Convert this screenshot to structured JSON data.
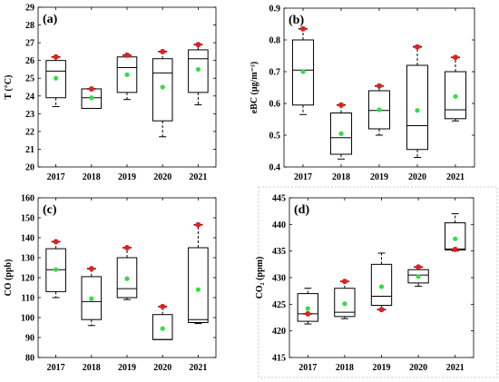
{
  "colors": {
    "mean_marker": "#33dd44",
    "extreme_marker": "#dd2222",
    "extreme_bar": "#8b0000",
    "box_stroke": "#000000"
  },
  "chart_data": [
    {
      "type": "box",
      "panel_label": "(a)",
      "ylabel": "T (°C)",
      "ylim": [
        20,
        29
      ],
      "yticks": [
        20,
        21,
        22,
        23,
        24,
        25,
        26,
        27,
        28,
        29
      ],
      "categories": [
        "2017",
        "2018",
        "2019",
        "2020",
        "2021"
      ],
      "boxes": [
        {
          "min": 23.4,
          "q1": 23.9,
          "median": 25.4,
          "q3": 26.0,
          "max": 26.2,
          "mean": 25.0,
          "extreme": 26.2
        },
        {
          "min": 23.3,
          "q1": 23.3,
          "median": 23.9,
          "q3": 24.4,
          "max": 24.4,
          "mean": 23.9,
          "extreme": 24.4
        },
        {
          "min": 23.8,
          "q1": 24.2,
          "median": 25.6,
          "q3": 26.2,
          "max": 26.3,
          "mean": 25.2,
          "extreme": 26.3
        },
        {
          "min": 21.7,
          "q1": 22.6,
          "median": 25.3,
          "q3": 26.1,
          "max": 26.5,
          "mean": 24.5,
          "extreme": 26.5
        },
        {
          "min": 23.5,
          "q1": 24.2,
          "median": 26.1,
          "q3": 26.6,
          "max": 26.9,
          "mean": 25.5,
          "extreme": 26.9
        }
      ]
    },
    {
      "type": "box",
      "panel_label": "(b)",
      "ylabel": "eBC (μg/m⁻³)",
      "ylim": [
        0.4,
        0.9
      ],
      "yticks": [
        0.4,
        0.5,
        0.6,
        0.7,
        0.8,
        0.9
      ],
      "categories": [
        "2017",
        "2018",
        "2019",
        "2020",
        "2021"
      ],
      "boxes": [
        {
          "min": 0.565,
          "q1": 0.595,
          "median": 0.705,
          "q3": 0.8,
          "max": 0.835,
          "mean": 0.7,
          "extreme": 0.835
        },
        {
          "min": 0.425,
          "q1": 0.44,
          "median": 0.492,
          "q3": 0.57,
          "max": 0.595,
          "mean": 0.505,
          "extreme": 0.595
        },
        {
          "min": 0.5,
          "q1": 0.52,
          "median": 0.578,
          "q3": 0.64,
          "max": 0.655,
          "mean": 0.58,
          "extreme": 0.655
        },
        {
          "min": 0.43,
          "q1": 0.455,
          "median": 0.53,
          "q3": 0.72,
          "max": 0.78,
          "mean": 0.578,
          "extreme": 0.778
        },
        {
          "min": 0.545,
          "q1": 0.552,
          "median": 0.58,
          "q3": 0.7,
          "max": 0.745,
          "mean": 0.622,
          "extreme": 0.745
        }
      ]
    },
    {
      "type": "box",
      "panel_label": "(c)",
      "ylabel": "CO (ppb)",
      "ylim": [
        80,
        160
      ],
      "yticks": [
        80,
        90,
        100,
        110,
        120,
        130,
        140,
        150,
        160
      ],
      "categories": [
        "2017",
        "2018",
        "2019",
        "2020",
        "2021"
      ],
      "boxes": [
        {
          "min": 110,
          "q1": 113,
          "median": 124,
          "q3": 134.5,
          "max": 138,
          "mean": 124,
          "extreme": 138
        },
        {
          "min": 96,
          "q1": 99,
          "median": 108,
          "q3": 120.5,
          "max": 124.5,
          "mean": 109.5,
          "extreme": 124.5
        },
        {
          "min": 109,
          "q1": 110,
          "median": 114.5,
          "q3": 130,
          "max": 135,
          "mean": 119.5,
          "extreme": 135
        },
        {
          "min": 89,
          "q1": 89,
          "median": 89,
          "q3": 101.5,
          "max": 105.5,
          "mean": 94.5,
          "extreme": 105.5
        },
        {
          "min": 97,
          "q1": 97.5,
          "median": 99,
          "q3": 135,
          "max": 146.5,
          "mean": 114,
          "extreme": 146.5
        }
      ]
    },
    {
      "type": "box",
      "panel_label": "(d)",
      "ylabel": "CO₂ (ppm)",
      "ylim": [
        415,
        445
      ],
      "yticks": [
        415,
        420,
        425,
        430,
        435,
        440,
        445
      ],
      "categories": [
        "2017",
        "2018",
        "2019",
        "2020",
        "2021"
      ],
      "boxes": [
        {
          "min": 421.3,
          "q1": 421.8,
          "median": 423.2,
          "q3": 427,
          "max": 428,
          "mean": 424.2,
          "extreme": 423.2
        },
        {
          "min": 422.3,
          "q1": 422.7,
          "median": 423.5,
          "q3": 428,
          "max": 429.3,
          "mean": 425.1,
          "extreme": 429.3
        },
        {
          "min": 424,
          "q1": 424.8,
          "median": 426.5,
          "q3": 432.5,
          "max": 434.6,
          "mean": 428.3,
          "extreme": 424
        },
        {
          "min": 428.4,
          "q1": 429,
          "median": 430.5,
          "q3": 431.5,
          "max": 432,
          "mean": 430.2,
          "extreme": 432
        },
        {
          "min": 435,
          "q1": 435.2,
          "median": 435.4,
          "q3": 440.3,
          "max": 442,
          "mean": 437.3,
          "extreme": 435.3
        }
      ]
    }
  ]
}
